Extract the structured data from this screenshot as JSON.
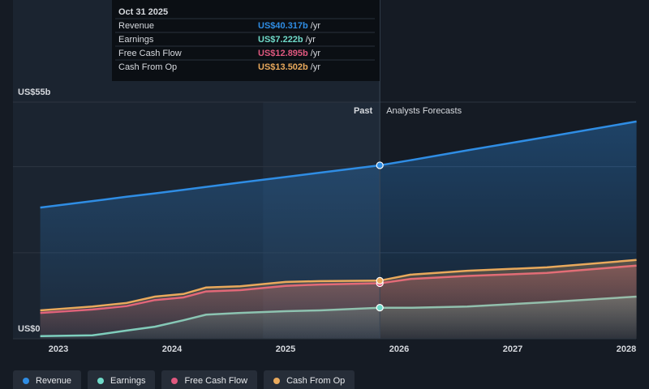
{
  "chart_data": {
    "type": "line",
    "x": [
      2022.84,
      2023.3,
      2023.6,
      2023.85,
      2024.1,
      2024.3,
      2024.6,
      2025.0,
      2025.3,
      2025.83,
      2026.1,
      2026.6,
      2027.3,
      2028.09
    ],
    "xlim": [
      2022.6,
      2028.1
    ],
    "xticks": [
      2023,
      2024,
      2025,
      2026,
      2027,
      2028
    ],
    "ylim": [
      0,
      55
    ],
    "yticks": [
      {
        "value": 0,
        "label": "US$0"
      },
      {
        "value": 55,
        "label": "US$55b"
      }
    ],
    "gridlines": [
      20,
      40
    ],
    "forecast_start": 2025.83,
    "past_label": "Past",
    "forecast_label": "Analysts Forecasts",
    "tooltip": {
      "title": "Oct 31 2025",
      "unit": "/yr"
    },
    "series": [
      {
        "name": "Revenue",
        "color": "#2f8de4",
        "values": [
          30.5,
          32.0,
          33.0,
          33.8,
          34.6,
          35.3,
          36.3,
          37.6,
          38.6,
          40.317,
          41.5,
          43.8,
          46.9,
          50.5
        ],
        "value_labels": [
          null,
          null,
          null,
          null,
          null,
          null,
          null,
          null,
          null,
          "US$40.317b",
          null,
          null,
          null,
          null
        ]
      },
      {
        "name": "Earnings",
        "color": "#6fd9c8",
        "values": [
          0.6,
          0.8,
          1.9,
          2.8,
          4.3,
          5.6,
          6.0,
          6.4,
          6.6,
          7.222,
          7.2,
          7.5,
          8.5,
          9.8
        ],
        "value_labels": [
          null,
          null,
          null,
          null,
          null,
          null,
          null,
          null,
          null,
          "US$7.222b",
          null,
          null,
          null,
          null
        ]
      },
      {
        "name": "Free Cash Flow",
        "color": "#e0587f",
        "values": [
          6.0,
          6.8,
          7.6,
          9.0,
          9.6,
          11.0,
          11.3,
          12.3,
          12.6,
          12.895,
          13.9,
          14.6,
          15.3,
          17.0
        ],
        "value_labels": [
          null,
          null,
          null,
          null,
          null,
          null,
          null,
          null,
          null,
          "US$12.895b",
          null,
          null,
          null,
          null
        ]
      },
      {
        "name": "Cash From Op",
        "color": "#e9a95c",
        "values": [
          6.6,
          7.5,
          8.3,
          9.8,
          10.4,
          11.9,
          12.2,
          13.2,
          13.4,
          13.502,
          14.9,
          15.8,
          16.6,
          18.3
        ],
        "value_labels": [
          null,
          null,
          null,
          null,
          null,
          null,
          null,
          null,
          null,
          "US$13.502b",
          null,
          null,
          null,
          null
        ]
      }
    ]
  }
}
